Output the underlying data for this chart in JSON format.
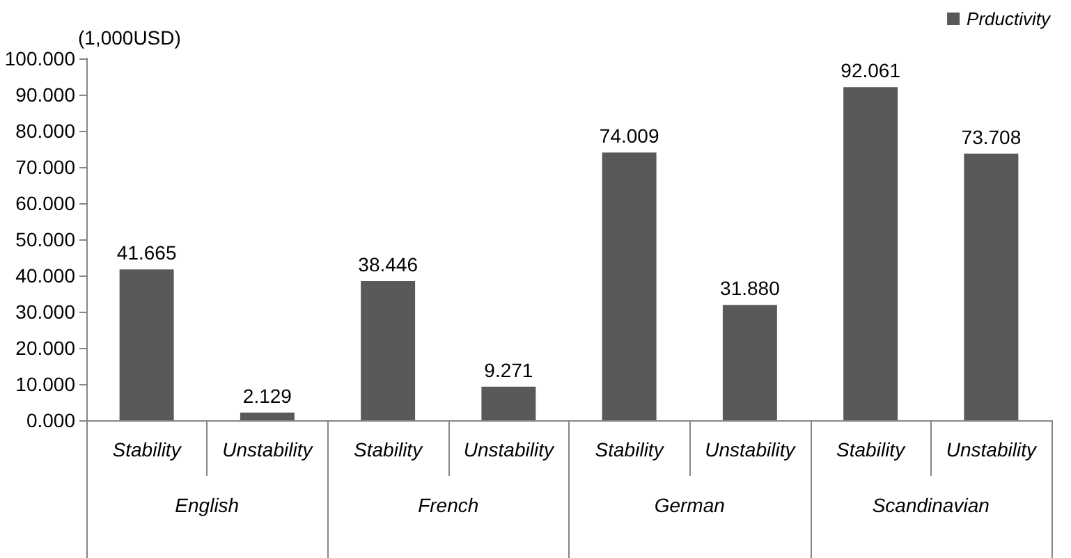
{
  "chart_data": {
    "type": "bar",
    "ylabel": "(1,000USD)",
    "categories": [
      "Stability",
      "Unstability",
      "Stability",
      "Unstability",
      "Stability",
      "Unstability",
      "Stability",
      "Unstability"
    ],
    "annotations": [
      "English",
      "French",
      "German",
      "Scandinavian"
    ],
    "series": [
      {
        "name": "Prductivity",
        "color": "#595959",
        "values": [
          41.665,
          2.129,
          38.446,
          9.271,
          74.009,
          31.88,
          92.061,
          73.708
        ],
        "value_labels": [
          "41.665",
          "2.129",
          "38.446",
          "9.271",
          "74.009",
          "31.880",
          "92.061",
          "73.708"
        ]
      }
    ],
    "ylim": [
      0,
      100
    ],
    "yticks": [
      {
        "value": 0,
        "label": "0.000"
      },
      {
        "value": 10,
        "label": "10.000"
      },
      {
        "value": 20,
        "label": "20.000"
      },
      {
        "value": 30,
        "label": "30.000"
      },
      {
        "value": 40,
        "label": "40.000"
      },
      {
        "value": 50,
        "label": "50.000"
      },
      {
        "value": 60,
        "label": "60.000"
      },
      {
        "value": 70,
        "label": "70.000"
      },
      {
        "value": 80,
        "label": "80.000"
      },
      {
        "value": 90,
        "label": "90.000"
      },
      {
        "value": 100,
        "label": "100.000"
      }
    ],
    "grid": false,
    "legend": "top right"
  }
}
